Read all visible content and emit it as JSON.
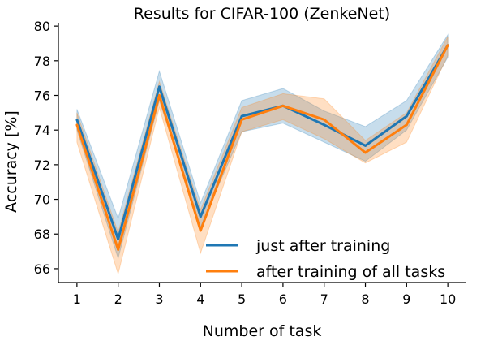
{
  "chart_data": {
    "type": "line",
    "title": "Results for CIFAR-100 (ZenkeNet)",
    "xlabel": "Number of task",
    "ylabel": "Accuracy [%]",
    "x": [
      1,
      2,
      3,
      4,
      5,
      6,
      7,
      8,
      9,
      10
    ],
    "xlim": [
      0.55,
      10.45
    ],
    "ylim": [
      65.2,
      80.1
    ],
    "yticks": [
      66,
      68,
      70,
      72,
      74,
      76,
      78,
      80
    ],
    "grid": false,
    "legend_position": "lower-right",
    "series": [
      {
        "name": "just after training",
        "color": "#1f77b4",
        "values": [
          74.6,
          67.7,
          76.5,
          69.0,
          74.8,
          75.4,
          74.3,
          73.1,
          74.8,
          78.9
        ],
        "band_lower": [
          74.0,
          66.6,
          75.7,
          68.4,
          73.9,
          74.4,
          73.3,
          72.2,
          74.0,
          78.2
        ],
        "band_upper": [
          75.2,
          68.9,
          77.4,
          69.8,
          75.7,
          76.4,
          75.1,
          74.2,
          75.7,
          79.5
        ]
      },
      {
        "name": "after training of all tasks",
        "color": "#ff7f0e",
        "values": [
          74.3,
          67.1,
          76.0,
          68.2,
          74.6,
          75.4,
          74.6,
          72.7,
          74.3,
          78.9
        ],
        "band_lower": [
          73.3,
          65.7,
          75.3,
          66.9,
          73.9,
          74.6,
          73.5,
          72.1,
          73.3,
          78.3
        ],
        "band_upper": [
          75.0,
          68.1,
          76.8,
          69.4,
          75.3,
          76.1,
          75.8,
          73.4,
          75.0,
          79.4
        ]
      }
    ]
  }
}
